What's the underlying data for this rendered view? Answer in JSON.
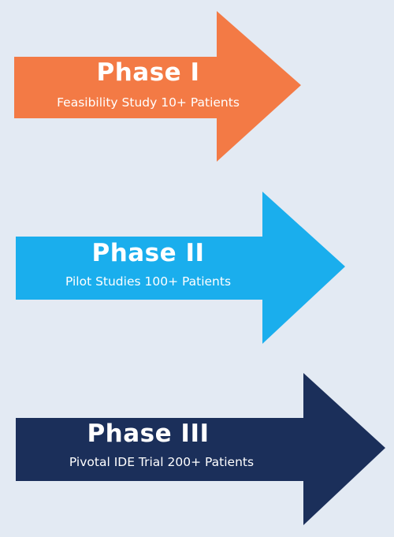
{
  "phases": [
    {
      "title": "Phase I",
      "subtitle": "Feasibility Study 10+ Patients",
      "color": "#f37a45"
    },
    {
      "title": "Phase II",
      "subtitle": "Pilot Studies 100+ Patients",
      "color": "#1aaeed"
    },
    {
      "title": "Phase III",
      "subtitle": "Pivotal IDE Trial 200+ Patients",
      "color": "#1b2f5a"
    }
  ]
}
